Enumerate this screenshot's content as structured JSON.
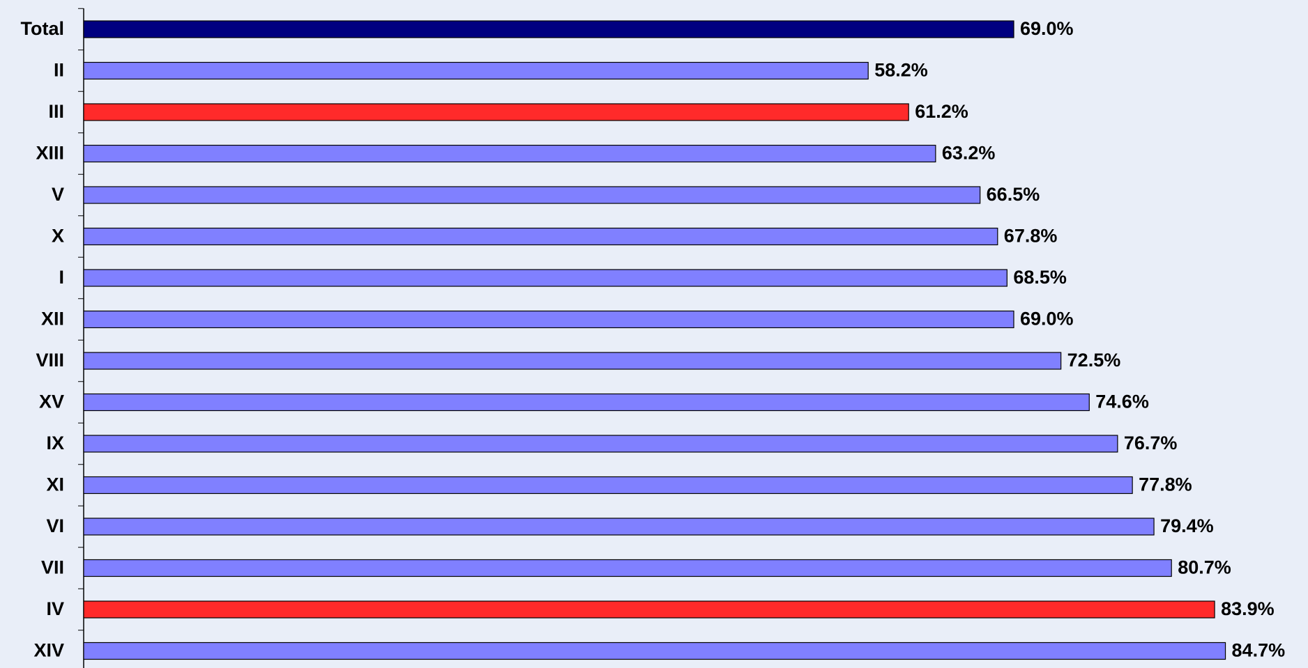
{
  "chart_data": {
    "type": "barh",
    "categories": [
      "Total",
      "II",
      "III",
      "XIII",
      "V",
      "X",
      "I",
      "XII",
      "VIII",
      "XV",
      "IX",
      "XI",
      "VI",
      "VII",
      "IV",
      "XIV"
    ],
    "values": [
      69.0,
      58.2,
      61.2,
      63.2,
      66.5,
      67.8,
      68.5,
      69.0,
      72.5,
      74.6,
      76.7,
      77.8,
      79.4,
      80.7,
      83.9,
      84.7
    ],
    "value_labels": [
      "69.0%",
      "58.2%",
      "61.2%",
      "63.2%",
      "66.5%",
      "67.8%",
      "68.5%",
      "69.0%",
      "72.5%",
      "74.6%",
      "76.7%",
      "77.8%",
      "79.4%",
      "80.7%",
      "83.9%",
      "84.7%"
    ],
    "colors": [
      "#000080",
      "#8080ff",
      "#ff2a2a",
      "#8080ff",
      "#8080ff",
      "#8080ff",
      "#8080ff",
      "#8080ff",
      "#8080ff",
      "#8080ff",
      "#8080ff",
      "#8080ff",
      "#8080ff",
      "#8080ff",
      "#ff2a2a",
      "#8080ff"
    ],
    "xlim": [
      0,
      90
    ]
  }
}
